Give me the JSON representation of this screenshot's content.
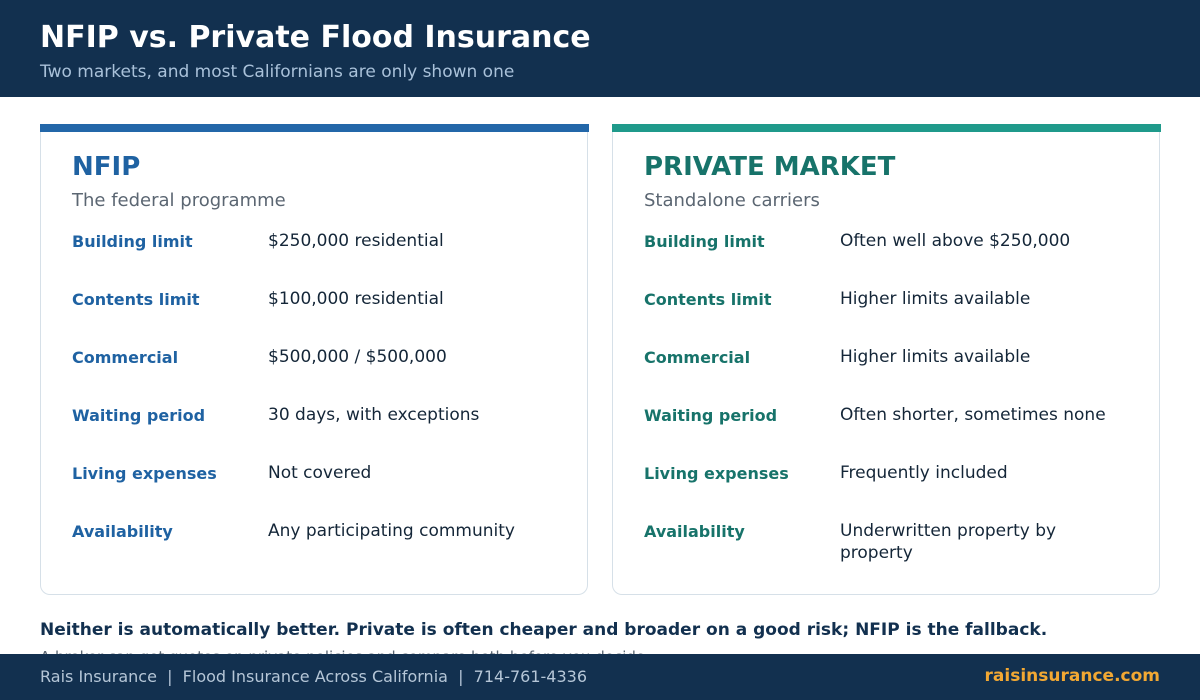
{
  "header": {
    "title": "NFIP vs. Private Flood Insurance",
    "subtitle": "Two markets, and most Californians are only shown one"
  },
  "cards": [
    {
      "title": "NFIP",
      "subtitle": "The federal programme",
      "rows": [
        [
          "Building limit",
          "$250,000 residential"
        ],
        [
          "Contents limit",
          "$100,000 residential"
        ],
        [
          "Commercial",
          "$500,000 / $500,000"
        ],
        [
          "Waiting period",
          "30 days, with exceptions"
        ],
        [
          "Living expenses",
          "Not covered"
        ],
        [
          "Availability",
          "Any participating community"
        ]
      ]
    },
    {
      "title": "PRIVATE MARKET",
      "subtitle": "Standalone carriers",
      "rows": [
        [
          "Building limit",
          "Often well above $250,000"
        ],
        [
          "Contents limit",
          "Higher limits available"
        ],
        [
          "Commercial",
          "Higher limits available"
        ],
        [
          "Waiting period",
          "Often shorter, sometimes none"
        ],
        [
          "Living expenses",
          "Frequently included"
        ],
        [
          "Availability",
          "Underwritten property by property"
        ]
      ]
    }
  ],
  "note": "Neither is automatically better. Private is often cheaper and broader on a good risk; NFIP is the fallback.",
  "note_detail": "A broker can get quotes on private policies and compare both before you decide.",
  "footer": {
    "left": "Rais Insurance  |  Flood Insurance Across California  |  714-761-4336",
    "right": "raisinsurance.com"
  }
}
